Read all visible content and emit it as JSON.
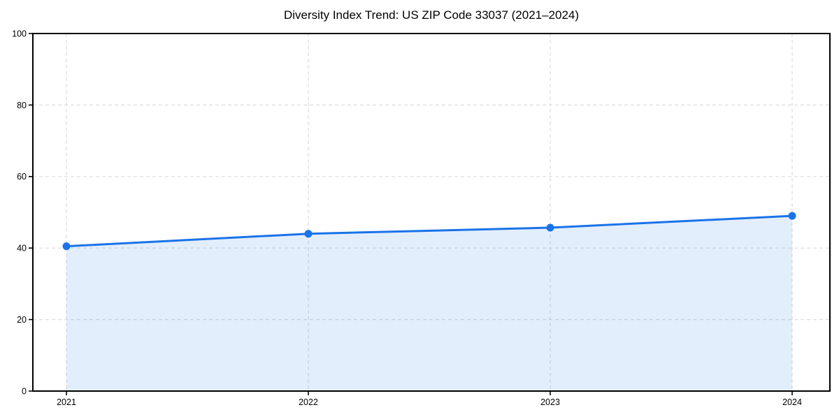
{
  "title": "Diversity Index Trend: US ZIP Code 33037 (2021–2024)",
  "chart_data": {
    "type": "area",
    "title": "Diversity Index Trend: US ZIP Code 33037 (2021–2024)",
    "categories": [
      "2021",
      "2022",
      "2023",
      "2024"
    ],
    "series": [
      {
        "name": "Diversity Index",
        "values": [
          40.5,
          44.0,
          45.7,
          49.0
        ]
      }
    ],
    "xlabel": "",
    "ylabel": "",
    "ylim": [
      0,
      100
    ],
    "y_ticks": [
      0,
      20,
      40,
      60,
      80,
      100
    ],
    "grid": true,
    "grid_line_style": "dashed",
    "legend": "none",
    "marker": "circle",
    "colors": {
      "line": "#1a73e8",
      "marker": "#1a73e8",
      "fill": "rgba(26,115,232,0.12)",
      "grid": "#dcdcdc",
      "axis": "#000000",
      "text": "#000000",
      "background": "#ffffff"
    }
  }
}
